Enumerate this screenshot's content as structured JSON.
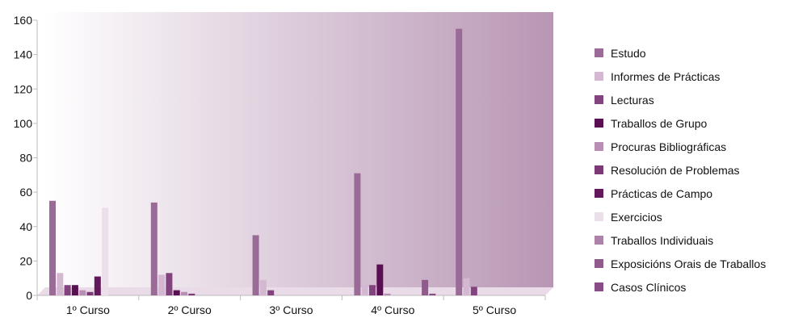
{
  "chart_data": {
    "type": "bar",
    "title": "",
    "xlabel": "",
    "ylabel": "",
    "ylim": [
      0,
      160
    ],
    "yticks": [
      0,
      20,
      40,
      60,
      80,
      100,
      120,
      140,
      160
    ],
    "grid": false,
    "legend_position": "right",
    "categories": [
      "1º Curso",
      "2º Curso",
      "3º Curso",
      "4º Curso",
      "5º Curso"
    ],
    "series": [
      {
        "name": "Estudo",
        "color": "#9b6b97",
        "values": [
          55,
          54,
          35,
          71,
          155
        ]
      },
      {
        "name": "Informes de Prácticas",
        "color": "#d4b7d1",
        "values": [
          13,
          12,
          9,
          6,
          10
        ]
      },
      {
        "name": "Lecturas",
        "color": "#83437f",
        "values": [
          6,
          13,
          3,
          6,
          5
        ]
      },
      {
        "name": "Traballos de Grupo",
        "color": "#5a0f52",
        "values": [
          6,
          3,
          0,
          18,
          0
        ]
      },
      {
        "name": "Procuras Bibliográficas",
        "color": "#b88eb4",
        "values": [
          3,
          2,
          0,
          1,
          0
        ]
      },
      {
        "name": "Resolución de Problemas",
        "color": "#7b3a76",
        "values": [
          2,
          1,
          0,
          0,
          0
        ]
      },
      {
        "name": "Prácticas de Campo",
        "color": "#62195b",
        "values": [
          11,
          0,
          0,
          0,
          0
        ]
      },
      {
        "name": "Exercicios",
        "color": "#ebe0ea",
        "values": [
          51,
          0,
          0,
          0,
          0
        ]
      },
      {
        "name": "Traballos Individuais",
        "color": "#ad82a9",
        "values": [
          0,
          0,
          0,
          0,
          0
        ]
      },
      {
        "name": "Exposicións Orais de Traballos",
        "color": "#915a8c",
        "values": [
          0,
          0,
          0,
          9,
          0
        ]
      },
      {
        "name": "Casos Clínicos",
        "color": "#8a4c86",
        "values": [
          0,
          0,
          0,
          1,
          0
        ]
      }
    ]
  }
}
